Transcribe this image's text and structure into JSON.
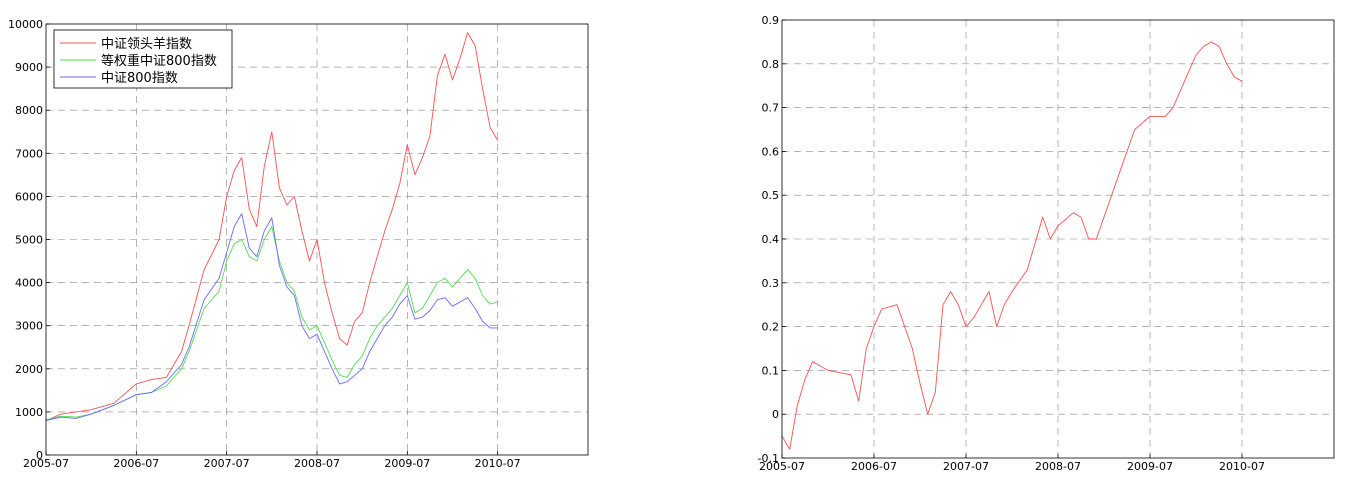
{
  "chart_data": [
    {
      "type": "line",
      "title": "",
      "xlabel": "",
      "ylabel": "",
      "xlim": [
        "2005-07",
        "2011-07"
      ],
      "ylim": [
        0,
        10000
      ],
      "xticks": [
        "2005-07",
        "2006-07",
        "2007-07",
        "2008-07",
        "2009-07",
        "2010-07"
      ],
      "yticks": [
        "0",
        "1000",
        "2000",
        "3000",
        "4000",
        "5000",
        "6000",
        "7000",
        "8000",
        "9000",
        "10000"
      ],
      "grid": true,
      "legend": "top-left",
      "series": [
        {
          "name": "中证领头羊指数",
          "color": "#ff5050",
          "points": [
            [
              "2005-07",
              800
            ],
            [
              "2005-09",
              950
            ],
            [
              "2005-11",
              1000
            ],
            [
              "2006-01",
              1050
            ],
            [
              "2006-04",
              1200
            ],
            [
              "2006-07",
              1650
            ],
            [
              "2006-09",
              1750
            ],
            [
              "2006-11",
              1800
            ],
            [
              "2007-01",
              2400
            ],
            [
              "2007-02",
              3000
            ],
            [
              "2007-04",
              4300
            ],
            [
              "2007-06",
              5000
            ],
            [
              "2007-07",
              6000
            ],
            [
              "2007-08",
              6600
            ],
            [
              "2007-09",
              6900
            ],
            [
              "2007-10",
              5700
            ],
            [
              "2007-11",
              5300
            ],
            [
              "2007-12",
              6700
            ],
            [
              "2008-01",
              7500
            ],
            [
              "2008-02",
              6200
            ],
            [
              "2008-03",
              5800
            ],
            [
              "2008-04",
              6000
            ],
            [
              "2008-05",
              5200
            ],
            [
              "2008-06",
              4500
            ],
            [
              "2008-07",
              5000
            ],
            [
              "2008-08",
              4000
            ],
            [
              "2008-09",
              3300
            ],
            [
              "2008-10",
              2700
            ],
            [
              "2008-11",
              2550
            ],
            [
              "2008-12",
              3100
            ],
            [
              "2009-01",
              3300
            ],
            [
              "2009-02",
              4000
            ],
            [
              "2009-03",
              4600
            ],
            [
              "2009-04",
              5200
            ],
            [
              "2009-05",
              5700
            ],
            [
              "2009-06",
              6300
            ],
            [
              "2009-07",
              7200
            ],
            [
              "2009-08",
              6500
            ],
            [
              "2009-09",
              6900
            ],
            [
              "2009-10",
              7400
            ],
            [
              "2009-11",
              8800
            ],
            [
              "2009-12",
              9300
            ],
            [
              "2010-01",
              8700
            ],
            [
              "2010-02",
              9200
            ],
            [
              "2010-03",
              9800
            ],
            [
              "2010-04",
              9500
            ],
            [
              "2010-05",
              8500
            ],
            [
              "2010-06",
              7600
            ],
            [
              "2010-07",
              7300
            ]
          ]
        },
        {
          "name": "等权重中证800指数",
          "color": "#50e050",
          "points": [
            [
              "2005-07",
              820
            ],
            [
              "2005-09",
              900
            ],
            [
              "2005-11",
              880
            ],
            [
              "2006-01",
              950
            ],
            [
              "2006-04",
              1150
            ],
            [
              "2006-07",
              1400
            ],
            [
              "2006-09",
              1450
            ],
            [
              "2006-11",
              1600
            ],
            [
              "2007-01",
              2000
            ],
            [
              "2007-02",
              2400
            ],
            [
              "2007-04",
              3400
            ],
            [
              "2007-06",
              3800
            ],
            [
              "2007-07",
              4500
            ],
            [
              "2007-08",
              4900
            ],
            [
              "2007-09",
              5000
            ],
            [
              "2007-10",
              4600
            ],
            [
              "2007-11",
              4500
            ],
            [
              "2007-12",
              5000
            ],
            [
              "2008-01",
              5300
            ],
            [
              "2008-02",
              4500
            ],
            [
              "2008-03",
              4000
            ],
            [
              "2008-04",
              3800
            ],
            [
              "2008-05",
              3200
            ],
            [
              "2008-06",
              2900
            ],
            [
              "2008-07",
              3000
            ],
            [
              "2008-08",
              2600
            ],
            [
              "2008-09",
              2200
            ],
            [
              "2008-10",
              1850
            ],
            [
              "2008-11",
              1800
            ],
            [
              "2008-12",
              2100
            ],
            [
              "2009-01",
              2300
            ],
            [
              "2009-02",
              2700
            ],
            [
              "2009-03",
              3000
            ],
            [
              "2009-04",
              3200
            ],
            [
              "2009-05",
              3400
            ],
            [
              "2009-06",
              3700
            ],
            [
              "2009-07",
              4000
            ],
            [
              "2009-08",
              3300
            ],
            [
              "2009-09",
              3400
            ],
            [
              "2009-10",
              3700
            ],
            [
              "2009-11",
              4000
            ],
            [
              "2009-12",
              4100
            ],
            [
              "2010-01",
              3900
            ],
            [
              "2010-02",
              4100
            ],
            [
              "2010-03",
              4300
            ],
            [
              "2010-04",
              4100
            ],
            [
              "2010-05",
              3700
            ],
            [
              "2010-06",
              3500
            ],
            [
              "2010-07",
              3550
            ]
          ]
        },
        {
          "name": "中证800指数",
          "color": "#6a6aff",
          "points": [
            [
              "2005-07",
              800
            ],
            [
              "2005-09",
              880
            ],
            [
              "2005-11",
              850
            ],
            [
              "2006-01",
              950
            ],
            [
              "2006-04",
              1150
            ],
            [
              "2006-07",
              1400
            ],
            [
              "2006-09",
              1450
            ],
            [
              "2006-11",
              1700
            ],
            [
              "2007-01",
              2100
            ],
            [
              "2007-02",
              2500
            ],
            [
              "2007-04",
              3600
            ],
            [
              "2007-06",
              4100
            ],
            [
              "2007-07",
              4700
            ],
            [
              "2007-08",
              5300
            ],
            [
              "2007-09",
              5600
            ],
            [
              "2007-10",
              4800
            ],
            [
              "2007-11",
              4600
            ],
            [
              "2007-12",
              5200
            ],
            [
              "2008-01",
              5500
            ],
            [
              "2008-02",
              4400
            ],
            [
              "2008-03",
              3900
            ],
            [
              "2008-04",
              3700
            ],
            [
              "2008-05",
              3000
            ],
            [
              "2008-06",
              2700
            ],
            [
              "2008-07",
              2800
            ],
            [
              "2008-08",
              2400
            ],
            [
              "2008-09",
              2000
            ],
            [
              "2008-10",
              1650
            ],
            [
              "2008-11",
              1700
            ],
            [
              "2008-12",
              1850
            ],
            [
              "2009-01",
              2000
            ],
            [
              "2009-02",
              2400
            ],
            [
              "2009-03",
              2700
            ],
            [
              "2009-04",
              3000
            ],
            [
              "2009-05",
              3200
            ],
            [
              "2009-06",
              3500
            ],
            [
              "2009-07",
              3700
            ],
            [
              "2009-08",
              3150
            ],
            [
              "2009-09",
              3200
            ],
            [
              "2009-10",
              3350
            ],
            [
              "2009-11",
              3600
            ],
            [
              "2009-12",
              3650
            ],
            [
              "2010-01",
              3450
            ],
            [
              "2010-02",
              3550
            ],
            [
              "2010-03",
              3650
            ],
            [
              "2010-04",
              3400
            ],
            [
              "2010-05",
              3100
            ],
            [
              "2010-06",
              2950
            ],
            [
              "2010-07",
              2950
            ]
          ]
        }
      ]
    },
    {
      "type": "line",
      "title": "",
      "xlabel": "",
      "ylabel": "",
      "xlim": [
        "2005-07",
        "2011-07"
      ],
      "ylim": [
        -0.1,
        0.9
      ],
      "xticks": [
        "2005-07",
        "2006-07",
        "2007-07",
        "2008-07",
        "2009-07",
        "2010-07"
      ],
      "yticks": [
        "-0.1",
        "0",
        "0.1",
        "0.2",
        "0.3",
        "0.4",
        "0.5",
        "0.6",
        "0.7",
        "0.8",
        "0.9"
      ],
      "grid": true,
      "series": [
        {
          "color": "#ff5050",
          "points": [
            [
              "2005-07",
              -0.05
            ],
            [
              "2005-08",
              -0.08
            ],
            [
              "2005-09",
              0.02
            ],
            [
              "2005-10",
              0.08
            ],
            [
              "2005-11",
              0.12
            ],
            [
              "2006-01",
              0.1
            ],
            [
              "2006-04",
              0.09
            ],
            [
              "2006-05",
              0.03
            ],
            [
              "2006-06",
              0.15
            ],
            [
              "2006-07",
              0.2
            ],
            [
              "2006-08",
              0.24
            ],
            [
              "2006-10",
              0.25
            ],
            [
              "2006-12",
              0.15
            ],
            [
              "2007-01",
              0.07
            ],
            [
              "2007-02",
              0.0
            ],
            [
              "2007-03",
              0.05
            ],
            [
              "2007-04",
              0.25
            ],
            [
              "2007-05",
              0.28
            ],
            [
              "2007-06",
              0.25
            ],
            [
              "2007-07",
              0.2
            ],
            [
              "2007-08",
              0.22
            ],
            [
              "2007-09",
              0.25
            ],
            [
              "2007-10",
              0.28
            ],
            [
              "2007-11",
              0.2
            ],
            [
              "2007-12",
              0.25
            ],
            [
              "2008-01",
              0.28
            ],
            [
              "2008-03",
              0.33
            ],
            [
              "2008-05",
              0.45
            ],
            [
              "2008-06",
              0.4
            ],
            [
              "2008-07",
              0.43
            ],
            [
              "2008-09",
              0.46
            ],
            [
              "2008-10",
              0.45
            ],
            [
              "2008-11",
              0.4
            ],
            [
              "2008-12",
              0.4
            ],
            [
              "2009-01",
              0.45
            ],
            [
              "2009-03",
              0.55
            ],
            [
              "2009-05",
              0.65
            ],
            [
              "2009-07",
              0.68
            ],
            [
              "2009-09",
              0.68
            ],
            [
              "2009-10",
              0.7
            ],
            [
              "2009-12",
              0.78
            ],
            [
              "2010-01",
              0.82
            ],
            [
              "2010-02",
              0.84
            ],
            [
              "2010-03",
              0.85
            ],
            [
              "2010-04",
              0.84
            ],
            [
              "2010-05",
              0.8
            ],
            [
              "2010-06",
              0.77
            ],
            [
              "2010-07",
              0.76
            ]
          ]
        }
      ]
    }
  ]
}
